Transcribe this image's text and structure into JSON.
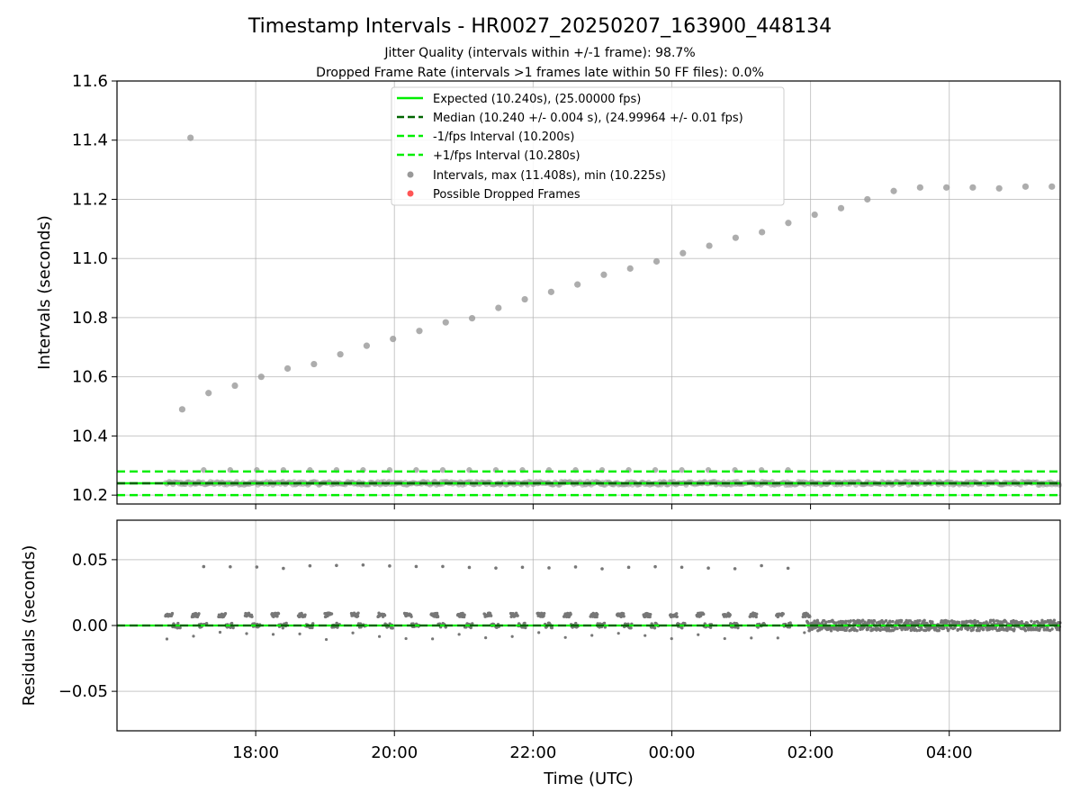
{
  "chart_data": {
    "type": "scatter",
    "title": "Timestamp Intervals - HR0027_20250207_163900_448134",
    "subtitle_lines": [
      "Jitter Quality (intervals within +/-1 frame): 98.7%",
      "Dropped Frame Rate (intervals >1 frames late within 50 FF files): 0.0%"
    ],
    "x_axis": {
      "label": "Time (UTC)",
      "ticks": [
        "18:00",
        "20:00",
        "22:00",
        "00:00",
        "02:00",
        "04:00"
      ],
      "range_hours": [
        16.0,
        29.6
      ],
      "tick_hours": [
        18,
        20,
        22,
        24,
        26,
        28
      ]
    },
    "panels": [
      {
        "name": "intervals",
        "ylabel": "Intervals (seconds)",
        "ylim": [
          10.17,
          11.6
        ],
        "yticks": [
          "10.2",
          "10.4",
          "10.6",
          "10.8",
          "11.0",
          "11.2",
          "11.4",
          "11.6"
        ],
        "ytick_values": [
          10.2,
          10.4,
          10.6,
          10.8,
          11.0,
          11.2,
          11.4,
          11.6
        ],
        "grid": true,
        "lines": [
          {
            "name": "Expected (10.240s), (25.00000 fps)",
            "y": 10.24,
            "color": "#00ee00",
            "style": "solid"
          },
          {
            "name": "Median (10.240 +/- 0.004 s), (24.99964 +/- 0.01 fps)",
            "y": 10.24,
            "color": "#006400",
            "style": "dashed"
          },
          {
            "name": "-1/fps Interval (10.200s)",
            "y": 10.2,
            "color": "#00ee00",
            "style": "dashed"
          },
          {
            "name": "+1/fps Interval (10.280s)",
            "y": 10.28,
            "color": "#00ee00",
            "style": "dashed"
          }
        ],
        "legend": {
          "placement": "upper-center",
          "entries": [
            {
              "label": "Expected (10.240s), (25.00000 fps)",
              "kind": "line-solid",
              "color": "#00ee00"
            },
            {
              "label": "Median (10.240 +/- 0.004 s), (24.99964 +/- 0.01 fps)",
              "kind": "line-dashed",
              "color": "#006400"
            },
            {
              "label": "-1/fps Interval (10.200s)",
              "kind": "line-dashed",
              "color": "#00ee00"
            },
            {
              "label": "+1/fps Interval (10.280s)",
              "kind": "line-dashed",
              "color": "#00ee00"
            },
            {
              "label": "Intervals, max (11.408s), min (10.225s)",
              "kind": "marker",
              "color": "#999999"
            },
            {
              "label": "Possible Dropped Frames",
              "kind": "marker",
              "color": "#ff5555"
            }
          ]
        },
        "ramp_points": [
          {
            "x": 16.94,
            "y": 10.49
          },
          {
            "x": 17.06,
            "y": 11.408
          },
          {
            "x": 17.32,
            "y": 10.545
          },
          {
            "x": 17.7,
            "y": 10.57
          },
          {
            "x": 18.08,
            "y": 10.6
          },
          {
            "x": 18.46,
            "y": 10.628
          },
          {
            "x": 18.84,
            "y": 10.643
          },
          {
            "x": 19.22,
            "y": 10.676
          },
          {
            "x": 19.6,
            "y": 10.705
          },
          {
            "x": 19.98,
            "y": 10.728
          },
          {
            "x": 20.36,
            "y": 10.755
          },
          {
            "x": 20.74,
            "y": 10.784
          },
          {
            "x": 21.12,
            "y": 10.798
          },
          {
            "x": 21.5,
            "y": 10.833
          },
          {
            "x": 21.88,
            "y": 10.862
          },
          {
            "x": 22.26,
            "y": 10.887
          },
          {
            "x": 22.64,
            "y": 10.912
          },
          {
            "x": 23.02,
            "y": 10.945
          },
          {
            "x": 23.4,
            "y": 10.966
          },
          {
            "x": 23.78,
            "y": 10.99
          },
          {
            "x": 24.16,
            "y": 11.018
          },
          {
            "x": 24.54,
            "y": 11.043
          },
          {
            "x": 24.92,
            "y": 11.07
          },
          {
            "x": 25.3,
            "y": 11.089
          },
          {
            "x": 25.68,
            "y": 11.12
          },
          {
            "x": 26.06,
            "y": 11.148
          },
          {
            "x": 26.44,
            "y": 11.17
          },
          {
            "x": 26.82,
            "y": 11.2
          },
          {
            "x": 27.2,
            "y": 11.228
          },
          {
            "x": 27.58,
            "y": 11.24
          },
          {
            "x": 27.96,
            "y": 11.24
          },
          {
            "x": 28.34,
            "y": 11.24
          },
          {
            "x": 28.72,
            "y": 11.237
          },
          {
            "x": 29.1,
            "y": 11.243
          },
          {
            "x": 29.48,
            "y": 11.243
          }
        ],
        "band_points": {
          "x_start": 16.7,
          "x_end": 29.6,
          "center": 10.24,
          "spread": 0.012,
          "high_value": 10.285,
          "high_x_start": 17.25,
          "high_x_end": 25.95,
          "high_step": 0.383
        }
      },
      {
        "name": "residuals",
        "ylabel": "Residuals (seconds)",
        "ylim": [
          -0.08,
          0.08
        ],
        "yticks": [
          "−0.05",
          "0.00",
          "0.05"
        ],
        "ytick_values": [
          -0.05,
          0.0,
          0.05
        ],
        "grid": true,
        "lines": [
          {
            "y": 0.0,
            "color": "#00ee00",
            "style": "solid"
          },
          {
            "y": 0.0,
            "color": "#006400",
            "style": "dashed"
          }
        ],
        "high_points": {
          "y": 0.044,
          "x_start": 17.25,
          "x_end": 25.95,
          "step": 0.383
        },
        "cluster": {
          "x_start": 16.7,
          "x_end": 25.95,
          "period": 0.383,
          "values": [
            0.008,
            0.007,
            0.0
          ]
        },
        "noise": {
          "x_start": 25.95,
          "x_end": 29.6,
          "spread": 0.004
        }
      }
    ]
  }
}
